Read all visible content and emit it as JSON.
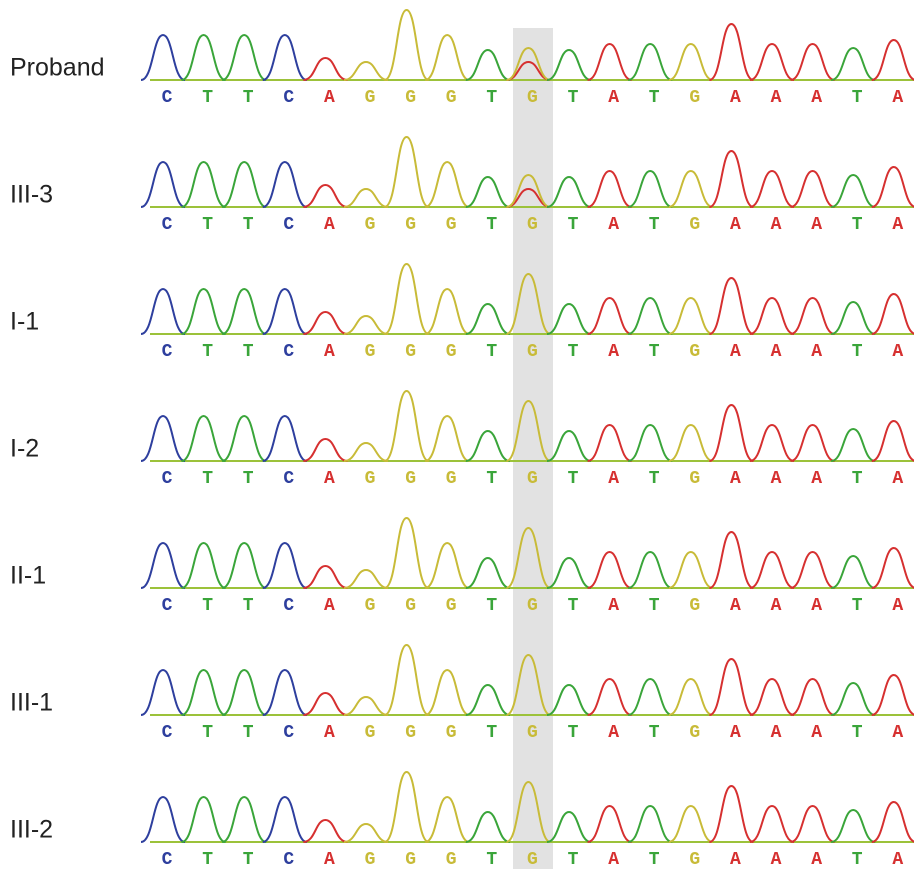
{
  "rows": [
    {
      "label": "Proband",
      "bases": [
        "C",
        "T",
        "T",
        "C",
        "A",
        "G",
        "G",
        "G",
        "T",
        "G",
        "T",
        "A",
        "T",
        "G",
        "A",
        "A",
        "A",
        "T",
        "A"
      ]
    },
    {
      "label": "III-3",
      "bases": [
        "C",
        "T",
        "T",
        "C",
        "A",
        "G",
        "G",
        "G",
        "T",
        "G",
        "T",
        "A",
        "T",
        "G",
        "A",
        "A",
        "A",
        "T",
        "A"
      ]
    },
    {
      "label": "I-1",
      "bases": [
        "C",
        "T",
        "T",
        "C",
        "A",
        "G",
        "G",
        "G",
        "T",
        "G",
        "T",
        "A",
        "T",
        "G",
        "A",
        "A",
        "A",
        "T",
        "A"
      ]
    },
    {
      "label": "I-2",
      "bases": [
        "C",
        "T",
        "T",
        "C",
        "A",
        "G",
        "G",
        "G",
        "T",
        "G",
        "T",
        "A",
        "T",
        "G",
        "A",
        "A",
        "A",
        "T",
        "A"
      ]
    },
    {
      "label": "II-1",
      "bases": [
        "C",
        "T",
        "T",
        "C",
        "A",
        "G",
        "G",
        "G",
        "T",
        "G",
        "T",
        "A",
        "T",
        "G",
        "A",
        "A",
        "A",
        "T",
        "A"
      ]
    },
    {
      "label": "III-1",
      "bases": [
        "C",
        "T",
        "T",
        "C",
        "A",
        "G",
        "G",
        "G",
        "T",
        "G",
        "T",
        "A",
        "T",
        "G",
        "A",
        "A",
        "A",
        "T",
        "A"
      ]
    },
    {
      "label": "III-2",
      "bases": [
        "C",
        "T",
        "T",
        "C",
        "A",
        "G",
        "G",
        "G",
        "T",
        "G",
        "T",
        "A",
        "T",
        "G",
        "A",
        "A",
        "A",
        "T",
        "A"
      ]
    }
  ]
}
